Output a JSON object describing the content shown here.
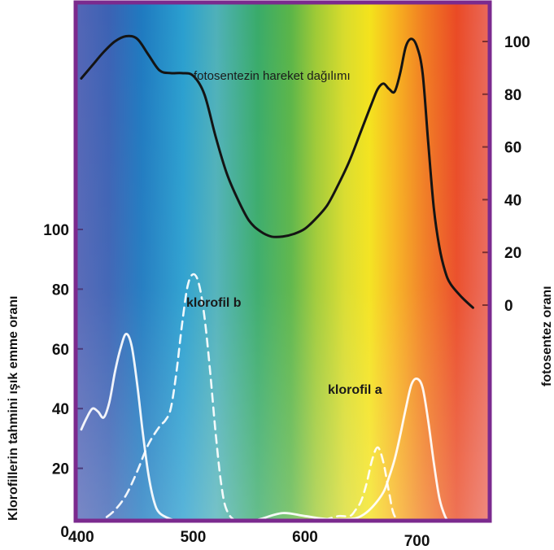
{
  "chart_data": {
    "type": "line",
    "title": "",
    "xlabel": "",
    "ylabel_left": "Klorofillerin tahmini ışık emme oranı",
    "ylabel_right": "fotosentez oranı",
    "xlim": [
      395,
      765
    ],
    "ylim_left": [
      0,
      117
    ],
    "ylim_right": [
      0,
      102
    ],
    "x_ticks": [
      "400",
      "500",
      "600",
      "700"
    ],
    "y_ticks_left": [
      "0",
      "20",
      "40",
      "60",
      "80",
      "100"
    ],
    "y_ticks_right": [
      "0",
      "20",
      "40",
      "60",
      "80",
      "100"
    ],
    "grid": false,
    "colors": {
      "frame": "#7b2a8e",
      "action_curve": "#141414",
      "chlorophyll_curves": "#ffffff"
    },
    "series": [
      {
        "name": "fotosentezin hareket dağılımı",
        "axis": "right",
        "style": "solid-dark",
        "x": [
          400,
          410,
          420,
          430,
          440,
          450,
          460,
          470,
          480,
          490,
          500,
          510,
          520,
          530,
          540,
          550,
          560,
          570,
          580,
          590,
          600,
          610,
          620,
          630,
          640,
          650,
          660,
          665,
          670,
          675,
          680,
          685,
          690,
          695,
          700,
          705,
          710,
          715,
          720,
          725,
          730,
          740,
          750
        ],
        "values": [
          86,
          91,
          96,
          100,
          102,
          101,
          95,
          89,
          88,
          88,
          87,
          80,
          64,
          50,
          40,
          32,
          28,
          26,
          26,
          27,
          29,
          33,
          38,
          46,
          55,
          66,
          77,
          82,
          84,
          82,
          81,
          88,
          98,
          101,
          98,
          88,
          62,
          37,
          22,
          13,
          8,
          3,
          -1
        ]
      },
      {
        "name": "klorofil b",
        "axis": "left",
        "style": "dashed-light",
        "x": [
          400,
          410,
          420,
          430,
          440,
          450,
          460,
          470,
          475,
          480,
          485,
          490,
          495,
          500,
          505,
          510,
          515,
          520,
          525,
          530,
          540,
          560,
          580,
          600,
          620,
          630,
          640,
          645,
          650,
          655,
          660,
          665,
          670,
          675,
          680,
          690,
          700
        ],
        "values": [
          1,
          1,
          3,
          6,
          11,
          19,
          28,
          34,
          36,
          40,
          52,
          68,
          81,
          85,
          82,
          71,
          53,
          32,
          15,
          6,
          2,
          1,
          1,
          1,
          3,
          4,
          4,
          6,
          9,
          15,
          23,
          27,
          22,
          12,
          4,
          1,
          0
        ]
      },
      {
        "name": "klorofil a",
        "axis": "left",
        "style": "solid-light",
        "x": [
          400,
          405,
          410,
          415,
          420,
          425,
          430,
          435,
          440,
          445,
          450,
          455,
          460,
          465,
          470,
          480,
          490,
          500,
          510,
          520,
          540,
          560,
          580,
          600,
          620,
          640,
          650,
          660,
          670,
          675,
          680,
          685,
          690,
          695,
          700,
          705,
          710,
          715,
          720,
          725,
          730
        ],
        "values": [
          33,
          37,
          40,
          39,
          37,
          42,
          52,
          60,
          65,
          61,
          48,
          32,
          18,
          9,
          5,
          3,
          2,
          2,
          2,
          1,
          1,
          3,
          5,
          4,
          3,
          3,
          4,
          7,
          12,
          17,
          23,
          31,
          40,
          48,
          50,
          47,
          36,
          22,
          10,
          4,
          1
        ]
      }
    ]
  }
}
